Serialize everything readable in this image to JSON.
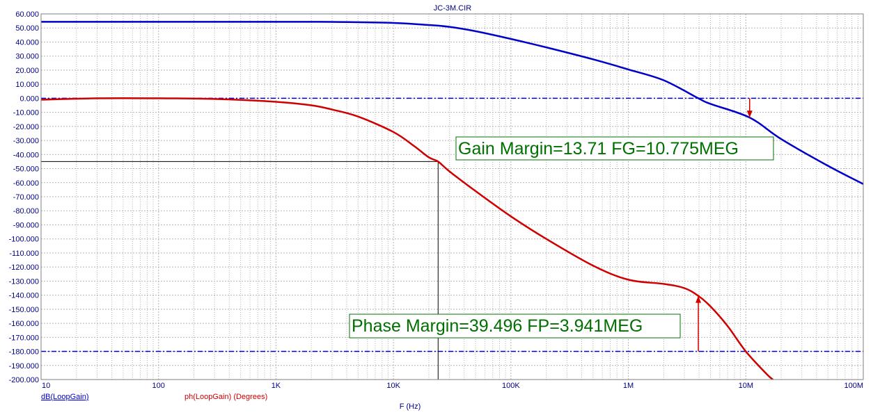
{
  "chart_data": {
    "type": "line",
    "title": "JC-3M.CIR",
    "xlabel": "F (Hz)",
    "x_scale": "log",
    "xlim": [
      10,
      100000000
    ],
    "ylim": [
      -200,
      60
    ],
    "y_ticks": [
      "60.000",
      "50.000",
      "40.000",
      "30.000",
      "20.000",
      "10.000",
      "0.000",
      "-10.000",
      "-20.000",
      "-30.000",
      "-40.000",
      "-50.000",
      "-60.000",
      "-70.000",
      "-80.000",
      "-90.000",
      "-100.000",
      "-110.000",
      "-120.000",
      "-130.000",
      "-140.000",
      "-150.000",
      "-160.000",
      "-170.000",
      "-180.000",
      "-190.000",
      "-200.000"
    ],
    "x_ticks": [
      {
        "value": 10,
        "label": "10"
      },
      {
        "value": 100,
        "label": "100"
      },
      {
        "value": 1000,
        "label": "1K"
      },
      {
        "value": 10000,
        "label": "10K"
      },
      {
        "value": 100000,
        "label": "100K"
      },
      {
        "value": 1000000,
        "label": "1M"
      },
      {
        "value": 10000000,
        "label": "10M"
      },
      {
        "value": 100000000,
        "label": "100M"
      }
    ],
    "grid": true,
    "series": [
      {
        "name": "dB(LoopGain)",
        "color": "#0000c8",
        "points": [
          [
            10,
            54.4
          ],
          [
            1000,
            54.4
          ],
          [
            3000,
            54.3
          ],
          [
            10000,
            53.6
          ],
          [
            20000,
            52.1
          ],
          [
            30000,
            50.8
          ],
          [
            50000,
            47.7
          ],
          [
            100000,
            42.2
          ],
          [
            200000,
            36.2
          ],
          [
            500000,
            27.7
          ],
          [
            1000000,
            20.5
          ],
          [
            2000000,
            12.8
          ],
          [
            3941000,
            0.0
          ],
          [
            5000000,
            -4.0
          ],
          [
            10775000,
            -13.71
          ],
          [
            20000000,
            -29
          ],
          [
            50000000,
            -48
          ],
          [
            100000000,
            -61
          ]
        ]
      },
      {
        "name": "ph(LoopGain) (Degrees)",
        "color": "#d00000",
        "points": [
          [
            10,
            -1
          ],
          [
            30,
            0
          ],
          [
            100,
            0
          ],
          [
            300,
            -0.5
          ],
          [
            1000,
            -2.5
          ],
          [
            2000,
            -5
          ],
          [
            3000,
            -8
          ],
          [
            5000,
            -13
          ],
          [
            10000,
            -24
          ],
          [
            15000,
            -34
          ],
          [
            20000,
            -42
          ],
          [
            24000,
            -45
          ],
          [
            30000,
            -52
          ],
          [
            50000,
            -66
          ],
          [
            100000,
            -84
          ],
          [
            200000,
            -100
          ],
          [
            500000,
            -119
          ],
          [
            1000000,
            -129
          ],
          [
            2000000,
            -132
          ],
          [
            3000000,
            -135
          ],
          [
            3941000,
            -140.504
          ],
          [
            5000000,
            -148
          ],
          [
            7000000,
            -162
          ],
          [
            10000000,
            -180
          ],
          [
            15000000,
            -196
          ],
          [
            17000000,
            -200
          ]
        ]
      }
    ],
    "reference_lines": [
      {
        "y": 0,
        "style": "dash-dot",
        "color": "#0000c8"
      },
      {
        "y": -180,
        "style": "dash-dot",
        "color": "#0000c8"
      }
    ],
    "crosshair": {
      "x": 24000,
      "y": -45
    },
    "markers": [
      {
        "x": 10775000,
        "from": 0,
        "to": -13.71,
        "color": "#d00000"
      },
      {
        "x": 3941000,
        "from": -180,
        "to": -140.504,
        "color": "#d00000"
      }
    ],
    "annotations": [
      {
        "text": "Gain Margin=13.71 FG=10.775MEG"
      },
      {
        "text": "Phase Margin=39.496 FP=3.941MEG"
      }
    ],
    "legend": [
      "dB(LoopGain)",
      "ph(LoopGain) (Degrees)"
    ]
  }
}
